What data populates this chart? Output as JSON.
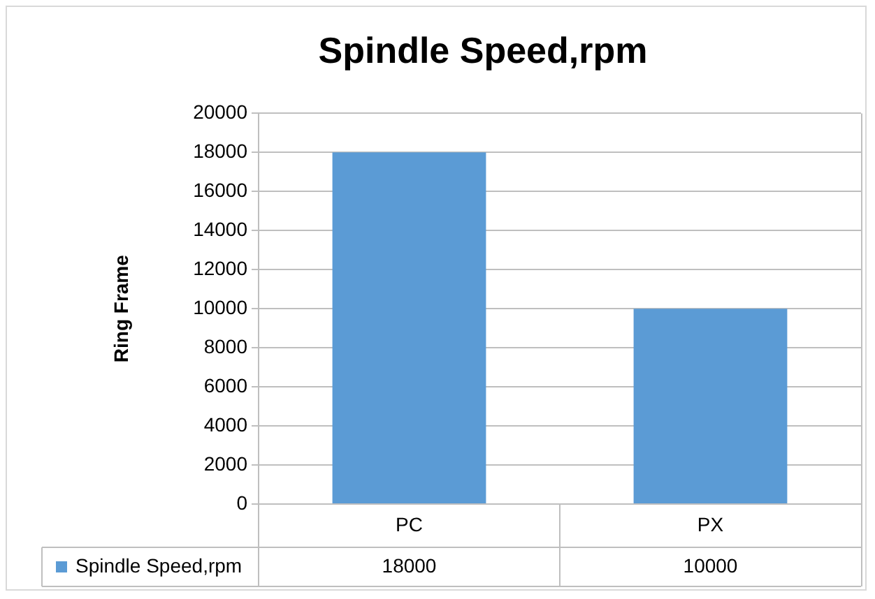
{
  "chart_data": {
    "type": "bar",
    "title": "Spindle Speed,rpm",
    "ylabel": "Ring Frame",
    "categories": [
      "PC",
      "PX"
    ],
    "series": [
      {
        "name": "Spindle Speed,rpm",
        "color": "#5b9bd5",
        "values": [
          18000,
          10000
        ]
      }
    ],
    "ylim": [
      0,
      20000
    ],
    "yticks": [
      0,
      2000,
      4000,
      6000,
      8000,
      10000,
      12000,
      14000,
      16000,
      18000,
      20000
    ],
    "grid": "y",
    "legend": "bottom",
    "data_labels": true
  }
}
